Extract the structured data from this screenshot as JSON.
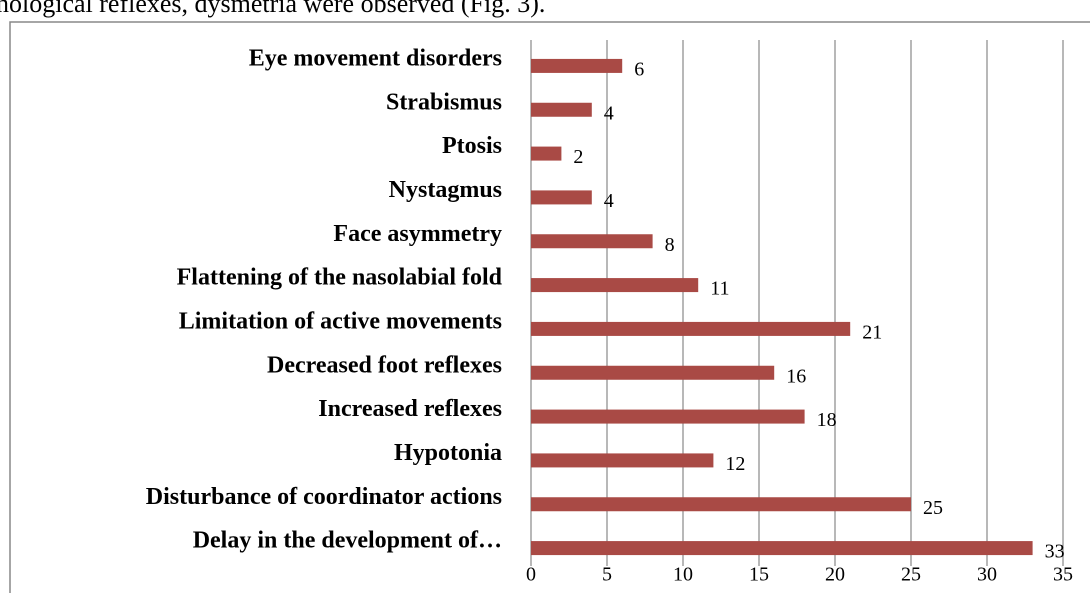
{
  "header_text": "nological reflexes, dysmetria were observed (Fig. 3).",
  "chart_data": {
    "type": "bar",
    "orientation": "horizontal",
    "categories": [
      "Eye movement disorders",
      "Strabismus",
      "Ptosis",
      "Nystagmus",
      "Face asymmetry",
      "Flattening of the nasolabial fold",
      "Limitation of active movements",
      "Decreased foot reflexes",
      "Increased reflexes",
      "Hypotonia",
      "Disturbance of coordinator actions",
      "Delay in the development of…"
    ],
    "values": [
      6,
      4,
      2,
      4,
      8,
      11,
      21,
      16,
      18,
      12,
      25,
      33
    ],
    "color": "#a94a45",
    "xlim": [
      0,
      35
    ],
    "xticks": [
      0,
      5,
      10,
      15,
      20,
      25,
      30,
      35
    ],
    "grid": true
  }
}
